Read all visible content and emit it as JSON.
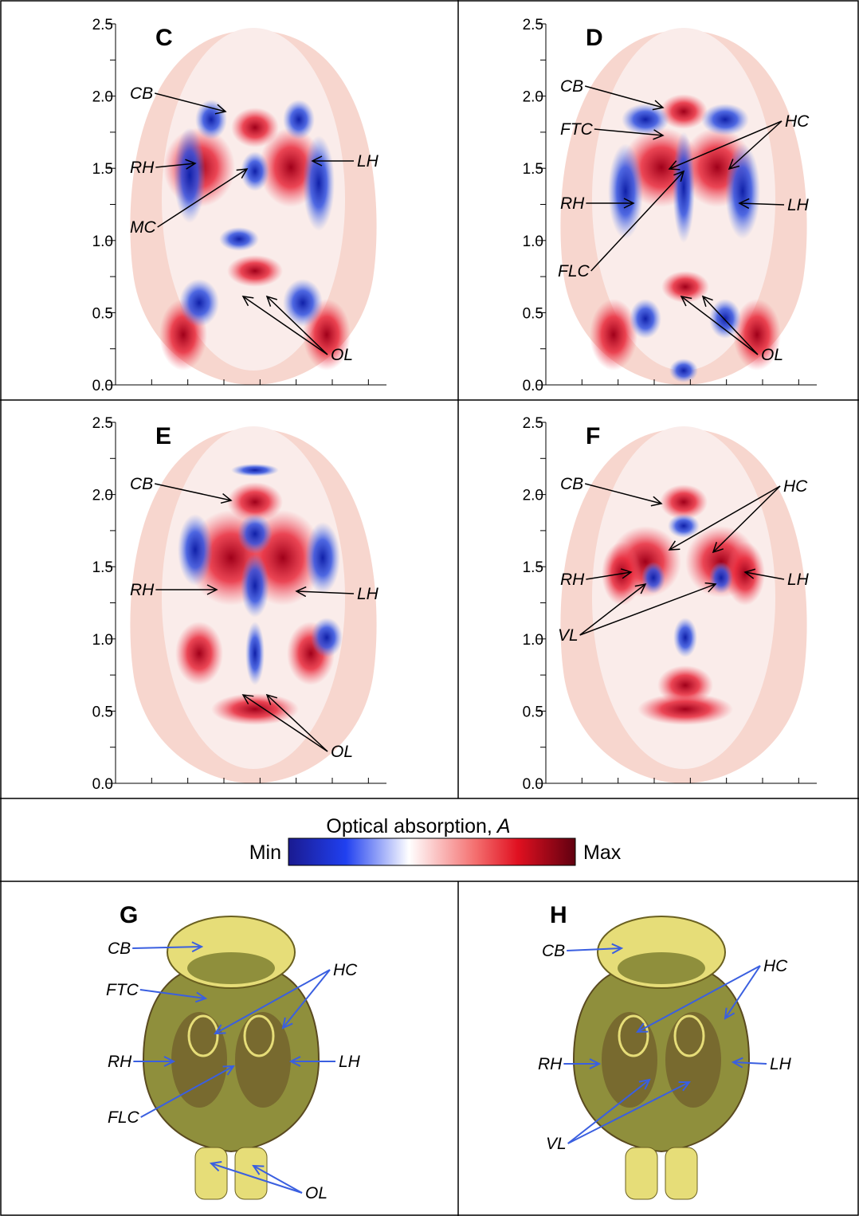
{
  "panels": [
    {
      "letter": "C",
      "yticks": [
        {
          "value": 0,
          "label": "0.0"
        },
        {
          "value": 0.5,
          "label": "0.5"
        },
        {
          "value": 1,
          "label": "1.0"
        },
        {
          "value": 1.5,
          "label": "1.5"
        },
        {
          "value": 2,
          "label": "2.0"
        },
        {
          "value": 2.5,
          "label": "2.5"
        }
      ],
      "labels": [
        "CB",
        "RH",
        "LH",
        "MC",
        "OL"
      ]
    },
    {
      "letter": "D",
      "yticks": [
        {
          "value": 0,
          "label": "0.0"
        },
        {
          "value": 0.5,
          "label": "0.5"
        },
        {
          "value": 1,
          "label": "1.0"
        },
        {
          "value": 1.5,
          "label": "1.5"
        },
        {
          "value": 2,
          "label": "2.0"
        },
        {
          "value": 2.5,
          "label": "2.5"
        }
      ],
      "labels": [
        "CB",
        "FTC",
        "HC",
        "RH",
        "LH",
        "FLC",
        "OL"
      ]
    },
    {
      "letter": "E",
      "yticks": [
        {
          "value": 0,
          "label": "0.0"
        },
        {
          "value": 0.5,
          "label": "0.5"
        },
        {
          "value": 1,
          "label": "1.0"
        },
        {
          "value": 1.5,
          "label": "1.5"
        },
        {
          "value": 2,
          "label": "2.0"
        },
        {
          "value": 2.5,
          "label": "2.5"
        }
      ],
      "labels": [
        "CB",
        "RH",
        "LH",
        "OL"
      ]
    },
    {
      "letter": "F",
      "yticks": [
        {
          "value": 0,
          "label": "0.0"
        },
        {
          "value": 0.5,
          "label": "0.5"
        },
        {
          "value": 1,
          "label": "1.0"
        },
        {
          "value": 1.5,
          "label": "1.5"
        },
        {
          "value": 2,
          "label": "2.0"
        },
        {
          "value": 2.5,
          "label": "2.5"
        }
      ],
      "labels": [
        "CB",
        "HC",
        "RH",
        "LH",
        "VL"
      ]
    }
  ],
  "colorbar": {
    "title": "Optical absorption,",
    "variable": "A",
    "min": "Min",
    "max": "Max"
  },
  "sections": [
    {
      "letter": "G",
      "labels": [
        "CB",
        "FTC",
        "HC",
        "RH",
        "LH",
        "FLC",
        "OL"
      ]
    },
    {
      "letter": "H",
      "labels": [
        "CB",
        "HC",
        "RH",
        "LH",
        "VL"
      ]
    }
  ]
}
